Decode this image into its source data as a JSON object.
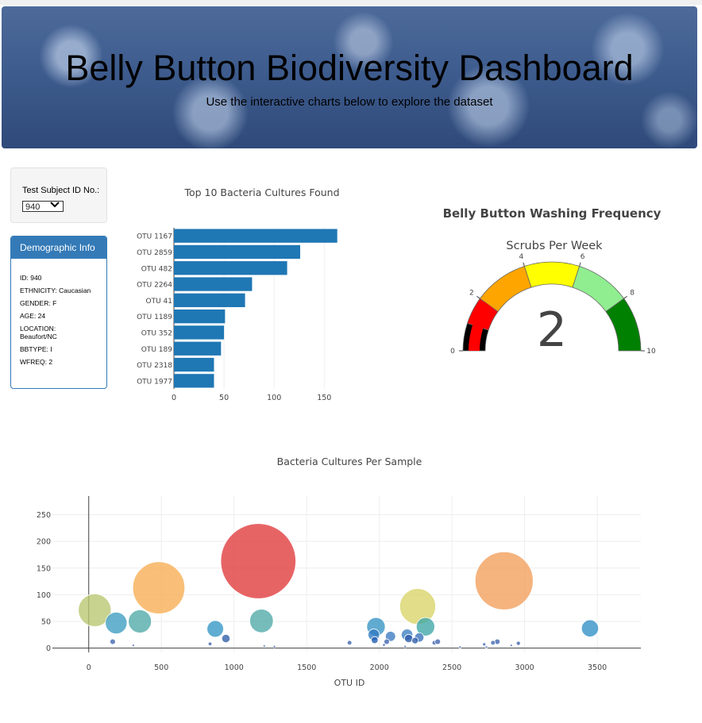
{
  "header": {
    "title": "Belly Button Biodiversity Dashboard",
    "subtitle": "Use the interactive charts below to explore the dataset"
  },
  "selector": {
    "label": "Test Subject ID No.:",
    "value": "940"
  },
  "demographics": {
    "title": "Demographic Info",
    "rows": [
      "ID: 940",
      "ETHNICITY: Caucasian",
      "GENDER: F",
      "AGE: 24",
      "LOCATION: Beaufort/NC",
      "BBTYPE: I",
      "WFREQ: 2"
    ]
  },
  "chart_data": [
    {
      "type": "bar",
      "orientation": "horizontal",
      "title": "Top 10 Bacteria Cultures Found",
      "categories": [
        "OTU 1167",
        "OTU 2859",
        "OTU 482",
        "OTU 2264",
        "OTU 41",
        "OTU 1189",
        "OTU 352",
        "OTU 189",
        "OTU 2318",
        "OTU 1977"
      ],
      "values": [
        163,
        126,
        113,
        78,
        71,
        51,
        50,
        47,
        40,
        40
      ],
      "xticks": [
        0,
        50,
        100,
        150
      ],
      "xlim": [
        0,
        168
      ],
      "color": "#1f77b4"
    },
    {
      "type": "gauge",
      "title": "Belly Button Washing Frequency",
      "subtitle": "Scrubs Per Week",
      "value": 2,
      "range": [
        0,
        10
      ],
      "ticks": [
        0,
        2,
        4,
        6,
        8,
        10
      ],
      "steps": [
        {
          "range": [
            0,
            1
          ],
          "color": "#000000"
        },
        {
          "range": [
            1,
            2
          ],
          "color": "#ff0000"
        },
        {
          "range": [
            2,
            4
          ],
          "color": "#ffa500"
        },
        {
          "range": [
            4,
            6
          ],
          "color": "#ffff00"
        },
        {
          "range": [
            6,
            8
          ],
          "color": "#90ee90"
        },
        {
          "range": [
            8,
            10
          ],
          "color": "#008000"
        }
      ]
    },
    {
      "type": "scatter",
      "mode": "bubble",
      "title": "Bacteria Cultures Per Sample",
      "xlabel": "OTU ID",
      "xlim": [
        -250,
        3800
      ],
      "ylim": [
        -8,
        285
      ],
      "xticks": [
        0,
        500,
        1000,
        1500,
        2000,
        2500,
        3000,
        3500
      ],
      "yticks": [
        0,
        50,
        100,
        150,
        200,
        250
      ],
      "points": [
        {
          "x": 1167,
          "y": 163,
          "c": "#e0393a"
        },
        {
          "x": 2859,
          "y": 126,
          "c": "#f29d5a"
        },
        {
          "x": 482,
          "y": 113,
          "c": "#f7ad52"
        },
        {
          "x": 2264,
          "y": 78,
          "c": "#d9d466"
        },
        {
          "x": 41,
          "y": 71,
          "c": "#b7c670"
        },
        {
          "x": 1189,
          "y": 51,
          "c": "#4ea9a8"
        },
        {
          "x": 352,
          "y": 50,
          "c": "#4ea9a8"
        },
        {
          "x": 189,
          "y": 47,
          "c": "#3c9cc0"
        },
        {
          "x": 2318,
          "y": 40,
          "c": "#3ca7a5"
        },
        {
          "x": 1977,
          "y": 40,
          "c": "#3493c4"
        },
        {
          "x": 3450,
          "y": 37,
          "c": "#2f8fc6"
        },
        {
          "x": 871,
          "y": 36,
          "c": "#3296c5"
        },
        {
          "x": 2191,
          "y": 25,
          "c": "#3b7fc0"
        },
        {
          "x": 2077,
          "y": 22,
          "c": "#3a7ac0"
        },
        {
          "x": 1962,
          "y": 25,
          "c": "#2e79c1"
        },
        {
          "x": 2275,
          "y": 20,
          "c": "#3771bd"
        },
        {
          "x": 1968,
          "y": 15,
          "c": "#1e5bb0"
        },
        {
          "x": 944,
          "y": 18,
          "c": "#2e5ca8"
        },
        {
          "x": 2202,
          "y": 18,
          "c": "#2d5aa8"
        },
        {
          "x": 2246,
          "y": 14,
          "c": "#2d5aa8"
        },
        {
          "x": 2051,
          "y": 12,
          "c": "#3d64ad"
        },
        {
          "x": 2379,
          "y": 10,
          "c": "#3d64ad"
        },
        {
          "x": 2402,
          "y": 12,
          "c": "#3d64ad"
        },
        {
          "x": 2812,
          "y": 12,
          "c": "#3d64ad"
        },
        {
          "x": 2782,
          "y": 10,
          "c": "#3d64ad"
        },
        {
          "x": 2957,
          "y": 9,
          "c": "#3d64ad"
        },
        {
          "x": 1795,
          "y": 10,
          "c": "#3d64ad"
        },
        {
          "x": 165,
          "y": 12,
          "c": "#3d64ad"
        },
        {
          "x": 2722,
          "y": 7,
          "c": "#3d64ad"
        },
        {
          "x": 2908,
          "y": 5,
          "c": "#3d64ad"
        },
        {
          "x": 835,
          "y": 8,
          "c": "#3d64ad"
        },
        {
          "x": 2032,
          "y": 6,
          "c": "#3d64ad"
        },
        {
          "x": 307,
          "y": 5,
          "c": "#3d64ad"
        },
        {
          "x": 1208,
          "y": 4,
          "c": "#3d64ad"
        },
        {
          "x": 2178,
          "y": 3,
          "c": "#3d64ad"
        },
        {
          "x": 1278,
          "y": 3,
          "c": "#3d64ad"
        },
        {
          "x": 2556,
          "y": 2,
          "c": "#3d64ad"
        },
        {
          "x": 2737,
          "y": 2,
          "c": "#3d64ad"
        }
      ]
    }
  ]
}
